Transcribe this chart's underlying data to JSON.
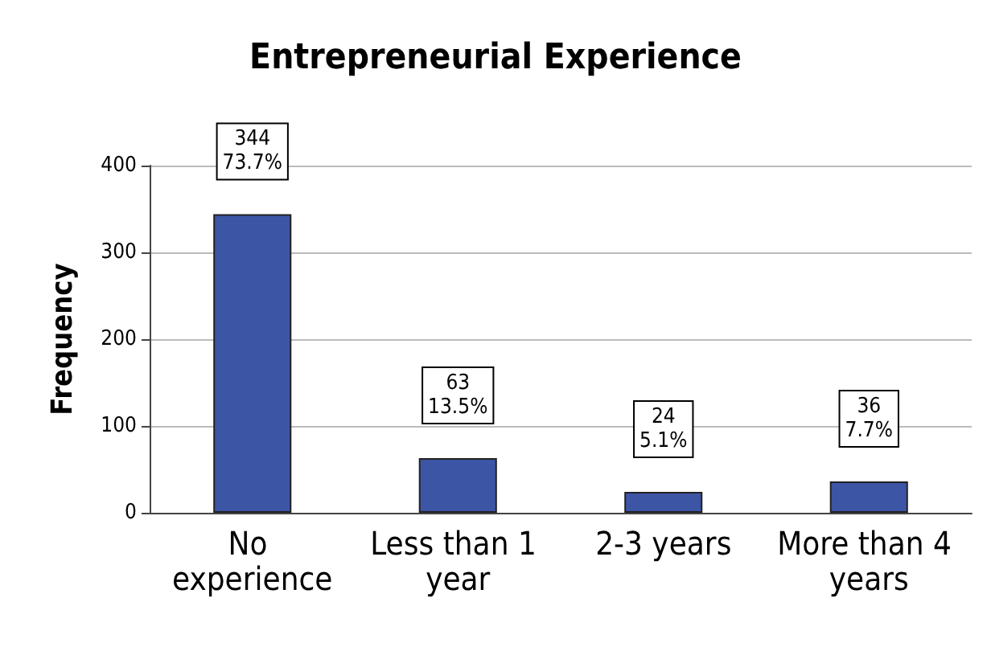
{
  "chart_data": {
    "type": "bar",
    "title": "Entrepreneurial Experience",
    "ylabel": "Frequency",
    "categories": [
      "No experience",
      "Less than 1 year",
      "2-3 years",
      "More than 4 years"
    ],
    "values": [
      344,
      63,
      24,
      36
    ],
    "color": "#3d55a5",
    "value_labels": [
      "344\n73.7%",
      "63\n13.5%",
      "24\n5.1%",
      "36\n7.7%"
    ],
    "ylim": [
      0,
      400
    ],
    "yticks": [
      0,
      100,
      200,
      300,
      400
    ],
    "grid": "y"
  }
}
